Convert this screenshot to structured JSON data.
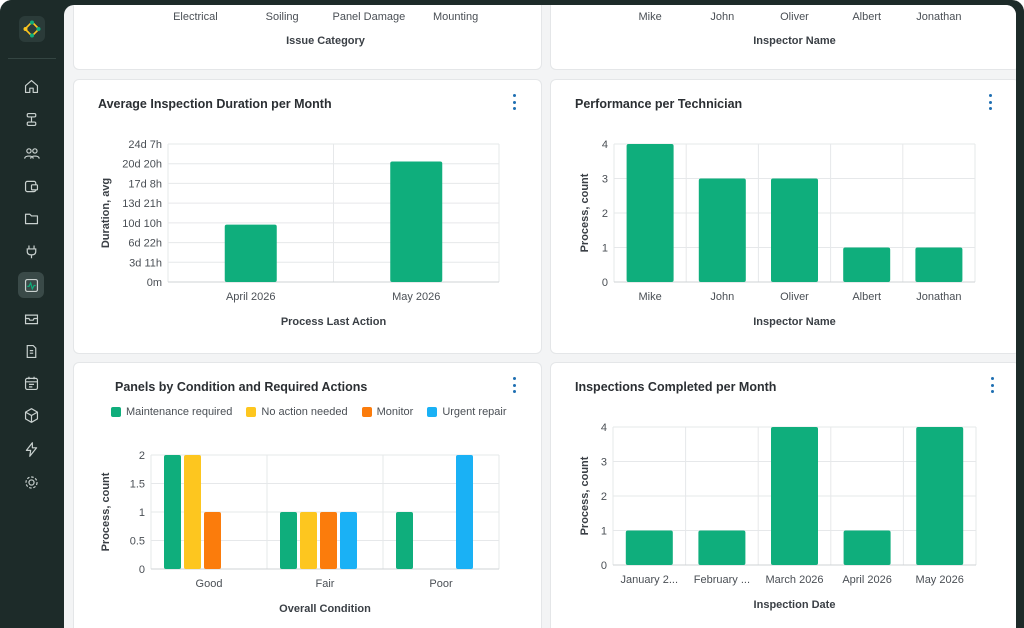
{
  "colors": {
    "green": "#0fae7c",
    "yellow": "#fdc61f",
    "orange": "#fb7c0c",
    "blue": "#1ab1f5",
    "sidebar": "#1d2b29",
    "accent": "#1f6fb2"
  },
  "sidebar": {
    "items": [
      {
        "icon": "home-icon"
      },
      {
        "icon": "workflow-icon"
      },
      {
        "icon": "users-icon"
      },
      {
        "icon": "device-icon"
      },
      {
        "icon": "folder-icon"
      },
      {
        "icon": "plug-icon"
      },
      {
        "icon": "analytics-icon",
        "active": true
      },
      {
        "icon": "inbox-icon"
      },
      {
        "icon": "document-icon"
      },
      {
        "icon": "calendar-icon"
      },
      {
        "icon": "package-icon"
      },
      {
        "icon": "lightning-icon"
      },
      {
        "icon": "settings-icon"
      }
    ]
  },
  "top_left": {
    "categories": [
      "Electrical",
      "Soiling",
      "Panel Damage",
      "Mounting"
    ],
    "xlabel": "Issue Category"
  },
  "top_right": {
    "categories": [
      "Mike",
      "John",
      "Oliver",
      "Albert",
      "Jonathan"
    ],
    "xlabel": "Inspector Name"
  },
  "cards": {
    "duration": {
      "title": "Average Inspection Duration per Month"
    },
    "technician": {
      "title": "Performance per Technician"
    },
    "condition": {
      "title": "Panels by Condition and Required Actions"
    },
    "completed": {
      "title": "Inspections Completed per Month"
    }
  },
  "chart_data": [
    {
      "id": "duration",
      "type": "bar",
      "title": "Average Inspection Duration per Month",
      "categories": [
        "April 2026",
        "May 2026"
      ],
      "values": [
        10.1,
        21.2
      ],
      "value_unit": "days",
      "xlabel": "Process Last Action",
      "ylabel": "Duration, avg",
      "ylim": [
        0,
        24.29
      ],
      "yticks": [
        0,
        3.47,
        6.94,
        10.41,
        13.88,
        17.35,
        20.82,
        24.29
      ],
      "ytick_labels": [
        "0m",
        "3d 11h",
        "6d 22h",
        "10d 10h",
        "13d 21h",
        "17d 8h",
        "20d 20h",
        "24d 7h"
      ],
      "grid": true
    },
    {
      "id": "technician",
      "type": "bar",
      "title": "Performance per Technician",
      "categories": [
        "Mike",
        "John",
        "Oliver",
        "Albert",
        "Jonathan"
      ],
      "values": [
        4,
        3,
        3,
        1,
        1
      ],
      "xlabel": "Inspector Name",
      "ylabel": "Process, count",
      "ylim": [
        0,
        4
      ],
      "yticks": [
        0,
        1,
        2,
        3,
        4
      ],
      "ytick_labels": [
        "0",
        "1",
        "2",
        "3",
        "4"
      ],
      "grid": true
    },
    {
      "id": "condition",
      "type": "bar",
      "title": "Panels by Condition and Required Actions",
      "categories": [
        "Good",
        "Fair",
        "Poor"
      ],
      "series": [
        {
          "name": "Maintenance required",
          "values": [
            2,
            1,
            1
          ],
          "color": "#0fae7c"
        },
        {
          "name": "No action needed",
          "values": [
            2,
            1,
            0
          ],
          "color": "#fdc61f"
        },
        {
          "name": "Monitor",
          "values": [
            1,
            1,
            0
          ],
          "color": "#fb7c0c"
        },
        {
          "name": "Urgent repair",
          "values": [
            0,
            1,
            2
          ],
          "color": "#1ab1f5"
        }
      ],
      "xlabel": "Overall Condition",
      "ylabel": "Process, count",
      "ylim": [
        0,
        2
      ],
      "yticks": [
        0,
        0.5,
        1,
        1.5,
        2
      ],
      "ytick_labels": [
        "0",
        "0.5",
        "1",
        "1.5",
        "2"
      ],
      "legend": "top",
      "grid": true
    },
    {
      "id": "completed",
      "type": "bar",
      "title": "Inspections Completed per Month",
      "categories": [
        "January 2...",
        "February ...",
        "March 2026",
        "April 2026",
        "May 2026"
      ],
      "values": [
        1,
        1,
        4,
        1,
        4
      ],
      "xlabel": "Inspection Date",
      "ylabel": "Process, count",
      "ylim": [
        0,
        4
      ],
      "yticks": [
        0,
        1,
        2,
        3,
        4
      ],
      "ytick_labels": [
        "0",
        "1",
        "2",
        "3",
        "4"
      ],
      "grid": true
    }
  ]
}
